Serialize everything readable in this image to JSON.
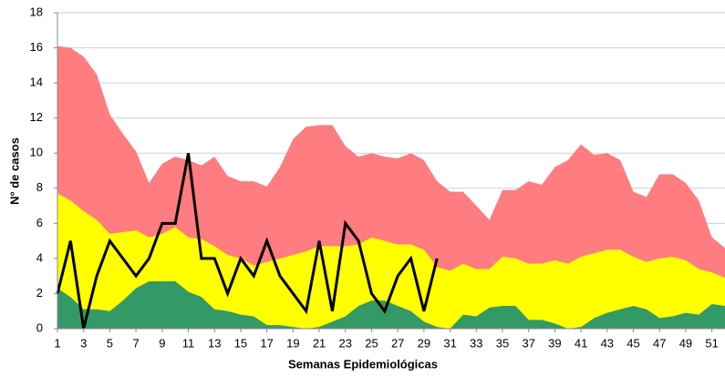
{
  "chart_data": {
    "type": "area",
    "x_label": "Semanas Epidemiológicas",
    "y_label": "N° de casos",
    "x": [
      1,
      2,
      3,
      4,
      5,
      6,
      7,
      8,
      9,
      10,
      11,
      12,
      13,
      14,
      15,
      16,
      17,
      18,
      19,
      20,
      21,
      22,
      23,
      24,
      25,
      26,
      27,
      28,
      29,
      30,
      31,
      32,
      33,
      34,
      35,
      36,
      37,
      38,
      39,
      40,
      41,
      42,
      43,
      44,
      45,
      46,
      47,
      48,
      49,
      50,
      51,
      52
    ],
    "xlim": [
      1,
      52
    ],
    "xticks": [
      1,
      3,
      5,
      7,
      9,
      11,
      13,
      15,
      17,
      19,
      21,
      23,
      25,
      27,
      29,
      31,
      33,
      35,
      37,
      39,
      41,
      43,
      45,
      47,
      49,
      51
    ],
    "ylim": [
      0,
      18
    ],
    "yticks": [
      0,
      2,
      4,
      6,
      8,
      10,
      12,
      14,
      16,
      18
    ],
    "grid": true,
    "series": [
      {
        "kind": "area",
        "color": "#ff7c80",
        "values": [
          16.1,
          16.0,
          15.5,
          14.5,
          12.2,
          11.1,
          10.1,
          8.3,
          9.4,
          9.8,
          9.6,
          9.3,
          9.8,
          8.7,
          8.4,
          8.4,
          8.1,
          9.2,
          10.8,
          11.5,
          11.6,
          11.6,
          10.4,
          9.8,
          10.0,
          9.8,
          9.7,
          10.0,
          9.6,
          8.4,
          7.8,
          7.8,
          7.0,
          6.2,
          7.9,
          7.9,
          8.4,
          8.2,
          9.2,
          9.6,
          10.5,
          9.9,
          10.0,
          9.6,
          7.8,
          7.5,
          8.8,
          8.8,
          8.3,
          7.3,
          5.2,
          4.6
        ]
      },
      {
        "kind": "area",
        "color": "#ffff00",
        "values": [
          7.7,
          7.3,
          6.7,
          6.2,
          5.4,
          5.5,
          5.6,
          5.2,
          5.4,
          5.8,
          5.2,
          5.1,
          4.7,
          4.2,
          4.0,
          3.6,
          3.8,
          4.0,
          4.2,
          4.4,
          4.7,
          4.7,
          4.7,
          4.8,
          5.2,
          5.0,
          4.8,
          4.8,
          4.5,
          3.5,
          3.3,
          3.7,
          3.4,
          3.4,
          4.1,
          4.0,
          3.7,
          3.7,
          3.9,
          3.7,
          4.1,
          4.3,
          4.5,
          4.5,
          4.1,
          3.8,
          4.0,
          4.1,
          3.9,
          3.4,
          3.2,
          2.9
        ]
      },
      {
        "kind": "area",
        "color": "#339966",
        "values": [
          2.3,
          1.8,
          1.1,
          1.1,
          1.0,
          1.6,
          2.3,
          2.7,
          2.7,
          2.7,
          2.1,
          1.8,
          1.1,
          1.0,
          0.8,
          0.7,
          0.2,
          0.2,
          0.1,
          0.0,
          0.1,
          0.4,
          0.7,
          1.3,
          1.6,
          1.6,
          1.3,
          1.0,
          0.4,
          0.1,
          0.0,
          0.8,
          0.7,
          1.2,
          1.3,
          1.3,
          0.5,
          0.5,
          0.3,
          0.0,
          0.1,
          0.6,
          0.9,
          1.1,
          1.3,
          1.1,
          0.6,
          0.7,
          0.9,
          0.8,
          1.4,
          1.3
        ]
      },
      {
        "kind": "line",
        "color": "#000000",
        "values": [
          2,
          5,
          0,
          3,
          5,
          4,
          3,
          4,
          6,
          6,
          10,
          4,
          4,
          2,
          4,
          3,
          5,
          3,
          2,
          1,
          5,
          1,
          6,
          5,
          2,
          1,
          3,
          4,
          1,
          4,
          null,
          null,
          null,
          null,
          null,
          null,
          null,
          null,
          null,
          null,
          null,
          null,
          null,
          null,
          null,
          null,
          null,
          null,
          null,
          null,
          null,
          null
        ]
      }
    ]
  }
}
